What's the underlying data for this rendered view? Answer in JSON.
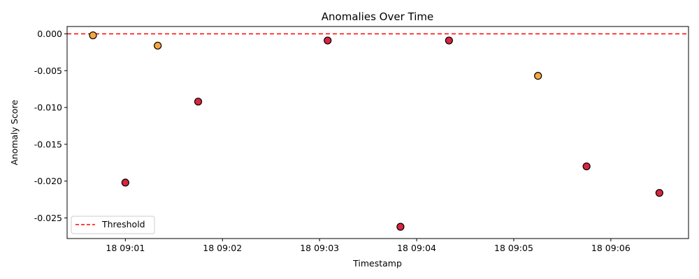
{
  "chart_data": {
    "type": "scatter",
    "title": "Anomalies Over Time",
    "xlabel": "Timestamp",
    "ylabel": "Anomaly Score",
    "xlim": [
      "2024-01-18T09:00:24",
      "2024-01-18T09:06:48"
    ],
    "ylim": [
      -0.0278,
      0.001
    ],
    "x_ticks": [
      "18 09:01",
      "18 09:02",
      "18 09:03",
      "18 09:04",
      "18 09:05",
      "18 09:06"
    ],
    "y_ticks": [
      "0.000",
      "-0.005",
      "-0.010",
      "-0.015",
      "-0.020",
      "-0.025"
    ],
    "threshold": {
      "value": 0.0,
      "label": "Threshold",
      "color": "#ff0000",
      "style": "dashed"
    },
    "legend_position": "lower-left",
    "grid": false,
    "colors": {
      "orange": "#f5a742",
      "red": "#d7263d",
      "edge": "#000000"
    },
    "points": [
      {
        "x": "2024-01-18T09:00:40",
        "y": -0.0002,
        "color": "orange"
      },
      {
        "x": "2024-01-18T09:01:00",
        "y": -0.0202,
        "color": "red"
      },
      {
        "x": "2024-01-18T09:01:20",
        "y": -0.0016,
        "color": "orange"
      },
      {
        "x": "2024-01-18T09:01:45",
        "y": -0.0092,
        "color": "red"
      },
      {
        "x": "2024-01-18T09:03:05",
        "y": -0.0009,
        "color": "red"
      },
      {
        "x": "2024-01-18T09:03:50",
        "y": -0.0262,
        "color": "red"
      },
      {
        "x": "2024-01-18T09:04:20",
        "y": -0.0009,
        "color": "red"
      },
      {
        "x": "2024-01-18T09:05:15",
        "y": -0.0057,
        "color": "orange"
      },
      {
        "x": "2024-01-18T09:05:45",
        "y": -0.018,
        "color": "red"
      },
      {
        "x": "2024-01-18T09:06:30",
        "y": -0.0216,
        "color": "red"
      }
    ]
  }
}
